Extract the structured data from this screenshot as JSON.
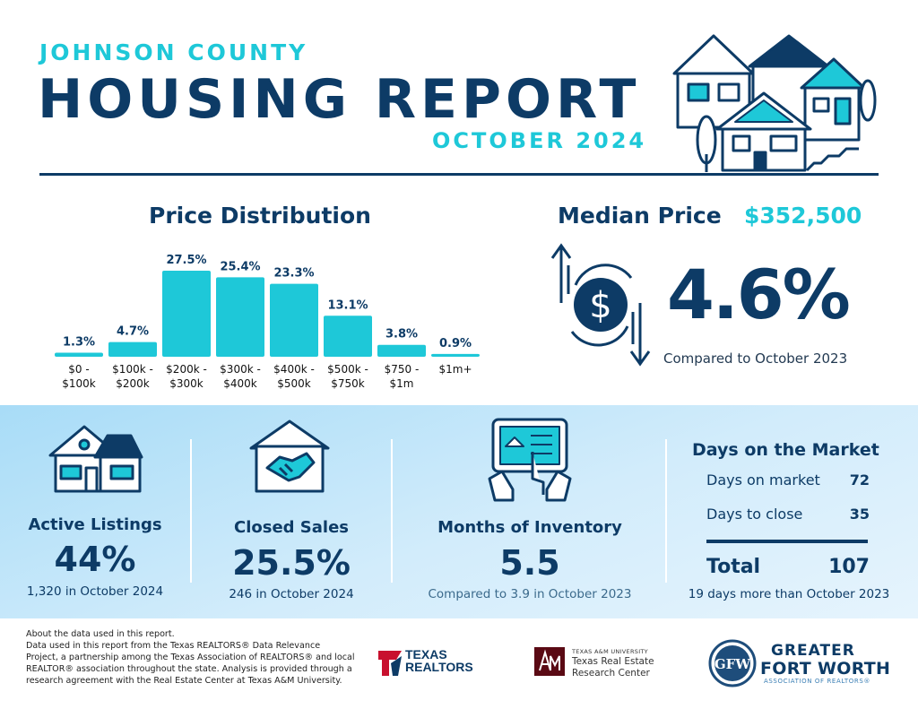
{
  "header": {
    "county": "JOHNSON COUNTY",
    "title": "HOUSING REPORT",
    "month": "OCTOBER 2024"
  },
  "price_distribution": {
    "title": "Price Distribution"
  },
  "chart_data": {
    "type": "bar",
    "title": "Price Distribution",
    "categories": [
      [
        "$0 -",
        "$100k"
      ],
      [
        "$100k -",
        "$200k"
      ],
      [
        "$200k -",
        "$300k"
      ],
      [
        "$300k -",
        "$400k"
      ],
      [
        "$400k -",
        "$500k"
      ],
      [
        "$500k -",
        "$750k"
      ],
      [
        "$750 -",
        "$1m"
      ],
      [
        "$1m+",
        ""
      ]
    ],
    "values": [
      1.3,
      4.7,
      27.5,
      25.4,
      23.3,
      13.1,
      3.8,
      0.9
    ],
    "value_labels": [
      "1.3%",
      "4.7%",
      "27.5%",
      "25.4%",
      "23.3%",
      "13.1%",
      "3.8%",
      "0.9%"
    ],
    "ylim": [
      0,
      27.5
    ],
    "bar_color": "#1ec8d8",
    "label_color": "#0d3b66"
  },
  "median_price": {
    "label": "Median Price",
    "value": "$352,500",
    "change": "4.6%",
    "compare": "Compared to October 2023"
  },
  "stats": {
    "active_listings": {
      "label": "Active Listings",
      "value": "44%",
      "note": "1,320 in October 2024"
    },
    "closed_sales": {
      "label": "Closed Sales",
      "value": "25.5%",
      "note": "246 in October 2024"
    },
    "months_inventory": {
      "label": "Months of Inventory",
      "value": "5.5",
      "note": "Compared to 3.9 in October 2023"
    }
  },
  "days_on_market": {
    "title": "Days on the Market",
    "rows": [
      {
        "label": "Days on market",
        "value": "72"
      },
      {
        "label": "Days to close",
        "value": "35"
      }
    ],
    "total_label": "Total",
    "total_value": "107",
    "note": "19 days more than October 2023"
  },
  "footer": {
    "about_lines": [
      "About the data used in this report.",
      "Data used in this report from the Texas REALTORS® Data Relevance",
      "Project, a partnership among the Texas Association of REALTORS® and local",
      "REALTOR® association throughout the state. Analysis is provided through a",
      "research agreement with the Real Estate Center at Texas A&M University."
    ],
    "texas_realtors_line1": "TEXAS",
    "texas_realtors_line2": "REALTORS",
    "tamu_small": "TEXAS A&M UNIVERSITY",
    "tamu_line1": "Texas Real Estate",
    "tamu_line2": "Research Center",
    "gfw_line1": "GREATER",
    "gfw_line2": "FORT WORTH",
    "gfw_line3": "ASSOCIATION OF REALTORS®"
  },
  "colors": {
    "navy": "#0d3b66",
    "teal": "#1ec8d8",
    "band": "#cfeafb"
  }
}
